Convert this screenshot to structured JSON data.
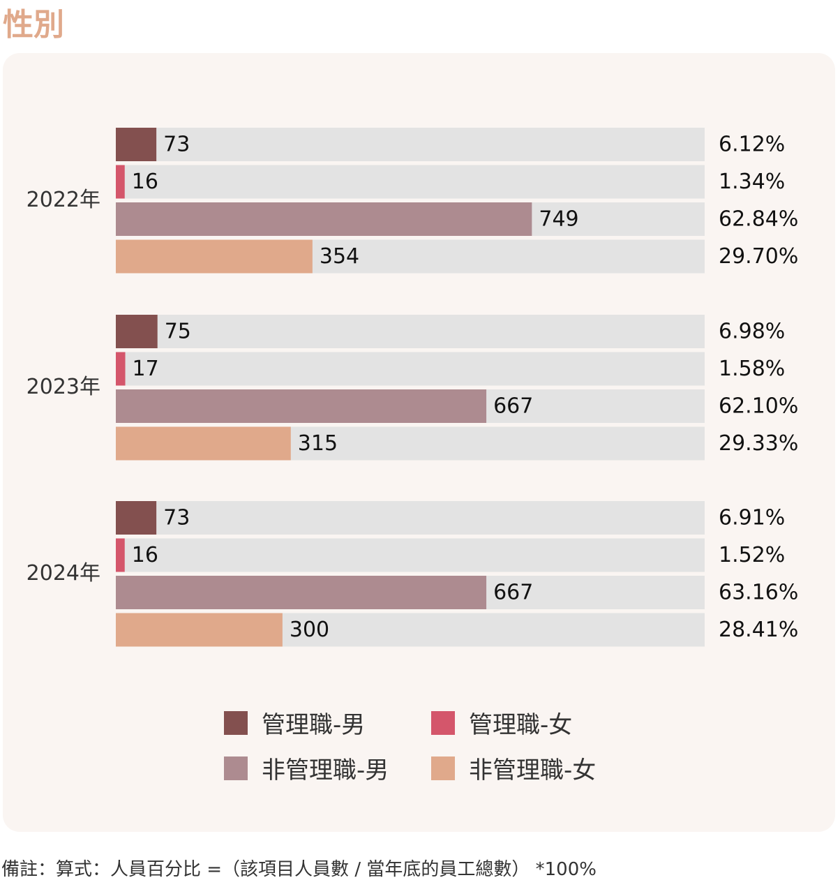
{
  "page": {
    "title": "性別",
    "note": "備註：算式：人員百分比 =（該項目人員數 / 當年底的員工總數） *100%"
  },
  "chart_data": {
    "type": "bar",
    "orientation": "horizontal",
    "groups": [
      {
        "year": "2022年",
        "bars": [
          {
            "series": "管理職-男",
            "value": 73,
            "pct": "6.12%"
          },
          {
            "series": "管理職-女",
            "value": 16,
            "pct": "1.34%"
          },
          {
            "series": "非管理職-男",
            "value": 749,
            "pct": "62.84%"
          },
          {
            "series": "非管理職-女",
            "value": 354,
            "pct": "29.70%"
          }
        ]
      },
      {
        "year": "2023年",
        "bars": [
          {
            "series": "管理職-男",
            "value": 75,
            "pct": "6.98%"
          },
          {
            "series": "管理職-女",
            "value": 17,
            "pct": "1.58%"
          },
          {
            "series": "非管理職-男",
            "value": 667,
            "pct": "62.10%"
          },
          {
            "series": "非管理職-女",
            "value": 315,
            "pct": "29.33%"
          }
        ]
      },
      {
        "year": "2024年",
        "bars": [
          {
            "series": "管理職-男",
            "value": 73,
            "pct": "6.91%"
          },
          {
            "series": "管理職-女",
            "value": 16,
            "pct": "1.52%"
          },
          {
            "series": "非管理職-男",
            "value": 667,
            "pct": "63.16%"
          },
          {
            "series": "非管理職-女",
            "value": 300,
            "pct": "28.41%"
          }
        ]
      }
    ],
    "axis_max": 1060,
    "grid": false,
    "legend_position": "bottom",
    "legend": [
      {
        "name": "管理職-男",
        "color": "#83504f"
      },
      {
        "name": "管理職-女",
        "color": "#d4566b"
      },
      {
        "name": "非管理職-男",
        "color": "#ad8b90"
      },
      {
        "name": "非管理職-女",
        "color": "#e0a98b"
      }
    ],
    "track_color": "#e3e3e3"
  }
}
